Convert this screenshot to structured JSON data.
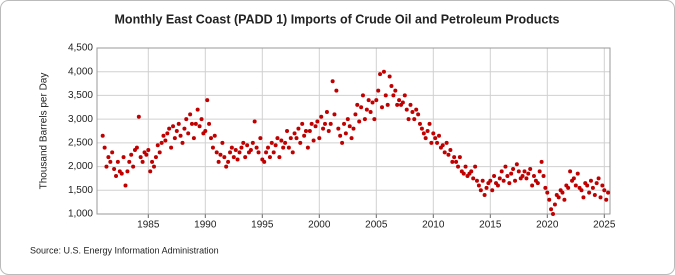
{
  "chart_data": {
    "type": "scatter",
    "title": "Monthly East Coast (PADD 1) Imports of Crude Oil and Petroleum Products",
    "y_label": "Thousand Barrels per Day",
    "source": "Source: U.S. Energy Information Administration",
    "color": "#c00000",
    "grid": true,
    "xlim": [
      1980.5,
      2025.5
    ],
    "xticks": [
      1985,
      1990,
      1995,
      2000,
      2005,
      2010,
      2015,
      2020,
      2025
    ],
    "ylim": [
      1000,
      4500
    ],
    "yticks": [
      {
        "value": 1000,
        "label": "1,000"
      },
      {
        "value": 1500,
        "label": "1,500"
      },
      {
        "value": 2000,
        "label": "2,000"
      },
      {
        "value": 2500,
        "label": "2,500"
      },
      {
        "value": 3000,
        "label": "3,000"
      },
      {
        "value": 3500,
        "label": "3,500"
      },
      {
        "value": 4000,
        "label": "4,000"
      },
      {
        "value": 4500,
        "label": "4,500"
      }
    ],
    "x": [
      1981,
      1981.17,
      1981.33,
      1981.5,
      1981.67,
      1981.83,
      1982,
      1982.17,
      1982.33,
      1982.5,
      1982.67,
      1982.83,
      1983,
      1983.17,
      1983.33,
      1983.5,
      1983.67,
      1983.83,
      1984,
      1984.17,
      1984.33,
      1984.5,
      1984.67,
      1984.83,
      1985,
      1985.17,
      1985.33,
      1985.5,
      1985.67,
      1985.83,
      1986,
      1986.17,
      1986.33,
      1986.5,
      1986.67,
      1986.83,
      1987,
      1987.17,
      1987.33,
      1987.5,
      1987.67,
      1987.83,
      1988,
      1988.17,
      1988.33,
      1988.5,
      1988.67,
      1988.83,
      1989,
      1989.17,
      1989.33,
      1989.5,
      1989.67,
      1989.83,
      1990,
      1990.17,
      1990.33,
      1990.5,
      1990.67,
      1990.83,
      1991,
      1991.17,
      1991.33,
      1991.5,
      1991.67,
      1991.83,
      1992,
      1992.17,
      1992.33,
      1992.5,
      1992.67,
      1992.83,
      1993,
      1993.17,
      1993.33,
      1993.5,
      1993.67,
      1993.83,
      1994,
      1994.17,
      1994.33,
      1994.5,
      1994.67,
      1994.83,
      1995,
      1995.17,
      1995.33,
      1995.5,
      1995.67,
      1995.83,
      1996,
      1996.17,
      1996.33,
      1996.5,
      1996.67,
      1996.83,
      1997,
      1997.17,
      1997.33,
      1997.5,
      1997.67,
      1997.83,
      1998,
      1998.17,
      1998.33,
      1998.5,
      1998.67,
      1998.83,
      1999,
      1999.17,
      1999.33,
      1999.5,
      1999.67,
      1999.83,
      2000,
      2000.17,
      2000.33,
      2000.5,
      2000.67,
      2000.83,
      2001,
      2001.17,
      2001.33,
      2001.5,
      2001.67,
      2001.83,
      2002,
      2002.17,
      2002.33,
      2002.5,
      2002.67,
      2002.83,
      2003,
      2003.17,
      2003.33,
      2003.5,
      2003.67,
      2003.83,
      2004,
      2004.17,
      2004.33,
      2004.5,
      2004.67,
      2004.83,
      2005,
      2005.17,
      2005.33,
      2005.5,
      2005.67,
      2005.83,
      2006,
      2006.17,
      2006.33,
      2006.5,
      2006.67,
      2006.83,
      2007,
      2007.17,
      2007.33,
      2007.5,
      2007.67,
      2007.83,
      2008,
      2008.17,
      2008.33,
      2008.5,
      2008.67,
      2008.83,
      2009,
      2009.17,
      2009.33,
      2009.5,
      2009.67,
      2009.83,
      2010,
      2010.17,
      2010.33,
      2010.5,
      2010.67,
      2010.83,
      2011,
      2011.17,
      2011.33,
      2011.5,
      2011.67,
      2011.83,
      2012,
      2012.17,
      2012.33,
      2012.5,
      2012.67,
      2012.83,
      2013,
      2013.17,
      2013.33,
      2013.5,
      2013.67,
      2013.83,
      2014,
      2014.17,
      2014.33,
      2014.5,
      2014.67,
      2014.83,
      2015,
      2015.17,
      2015.33,
      2015.5,
      2015.67,
      2015.83,
      2016,
      2016.17,
      2016.33,
      2016.5,
      2016.67,
      2016.83,
      2017,
      2017.17,
      2017.33,
      2017.5,
      2017.67,
      2017.83,
      2018,
      2018.17,
      2018.33,
      2018.5,
      2018.67,
      2018.83,
      2019,
      2019.17,
      2019.33,
      2019.5,
      2019.67,
      2019.83,
      2020,
      2020.17,
      2020.33,
      2020.5,
      2020.67,
      2020.83,
      2021,
      2021.17,
      2021.33,
      2021.5,
      2021.67,
      2021.83,
      2022,
      2022.17,
      2022.33,
      2022.5,
      2022.67,
      2022.83,
      2023,
      2023.17,
      2023.33,
      2023.5,
      2023.67,
      2023.83,
      2024,
      2024.17,
      2024.33,
      2024.5,
      2024.67,
      2024.83,
      2025,
      2025.17,
      2025.33
    ],
    "values": [
      2650,
      2400,
      2000,
      2200,
      2100,
      2300,
      1950,
      1800,
      2100,
      1900,
      1850,
      2200,
      1600,
      1900,
      2100,
      2250,
      2000,
      2350,
      2400,
      3050,
      2200,
      2100,
      2300,
      2250,
      2350,
      1900,
      2100,
      2000,
      2200,
      2450,
      2300,
      2500,
      2650,
      2550,
      2700,
      2800,
      2400,
      2850,
      2600,
      2750,
      2900,
      2650,
      2500,
      2800,
      3000,
      2700,
      3100,
      2900,
      2600,
      2900,
      3200,
      2850,
      3000,
      2700,
      2750,
      3400,
      2900,
      2600,
      2400,
      2650,
      2300,
      2100,
      2250,
      2500,
      2200,
      2000,
      2100,
      2300,
      2400,
      2200,
      2350,
      2150,
      2300,
      2400,
      2500,
      2200,
      2450,
      2300,
      2350,
      2500,
      2950,
      2400,
      2300,
      2600,
      2150,
      2100,
      2300,
      2400,
      2200,
      2500,
      2300,
      2450,
      2600,
      2200,
      2550,
      2400,
      2500,
      2750,
      2400,
      2600,
      2300,
      2700,
      2600,
      2800,
      2500,
      2900,
      2650,
      2750,
      2400,
      2750,
      2900,
      2550,
      2850,
      2950,
      2600,
      3050,
      2800,
      2900,
      3150,
      2750,
      2900,
      3800,
      3100,
      3600,
      2800,
      2650,
      2500,
      2900,
      2700,
      3000,
      2850,
      2600,
      2800,
      3100,
      3300,
      2950,
      3250,
      3500,
      3000,
      3200,
      3400,
      3150,
      3350,
      3000,
      3400,
      3600,
      3950,
      3250,
      4000,
      3500,
      3300,
      3900,
      3700,
      3500,
      3600,
      3300,
      3400,
      3300,
      3350,
      3500,
      3200,
      3000,
      3300,
      3150,
      3000,
      3200,
      3100,
      2900,
      2800,
      2700,
      2600,
      2750,
      2900,
      2500,
      2700,
      2600,
      2500,
      2650,
      2400,
      2450,
      2300,
      2500,
      2250,
      2350,
      2100,
      2200,
      2100,
      2000,
      2200,
      1900,
      1850,
      2000,
      1800,
      1850,
      1900,
      1750,
      2000,
      1700,
      1600,
      1500,
      1700,
      1400,
      1550,
      1650,
      1700,
      1500,
      1800,
      1650,
      1600,
      1750,
      1900,
      1700,
      2000,
      1800,
      1650,
      1850,
      1950,
      1700,
      2050,
      1900,
      1750,
      1800,
      1900,
      1750,
      1850,
      1950,
      1600,
      1800,
      1700,
      1650,
      1900,
      2100,
      1800,
      1550,
      1450,
      1300,
      1100,
      1000,
      1200,
      1400,
      1350,
      1500,
      1450,
      1300,
      1600,
      1550,
      1900,
      1700,
      1750,
      1600,
      1850,
      1550,
      1500,
      1350,
      1650,
      1600,
      1450,
      1700,
      1550,
      1400,
      1650,
      1750,
      1350,
      1600,
      1500,
      1300,
      1450
    ]
  }
}
